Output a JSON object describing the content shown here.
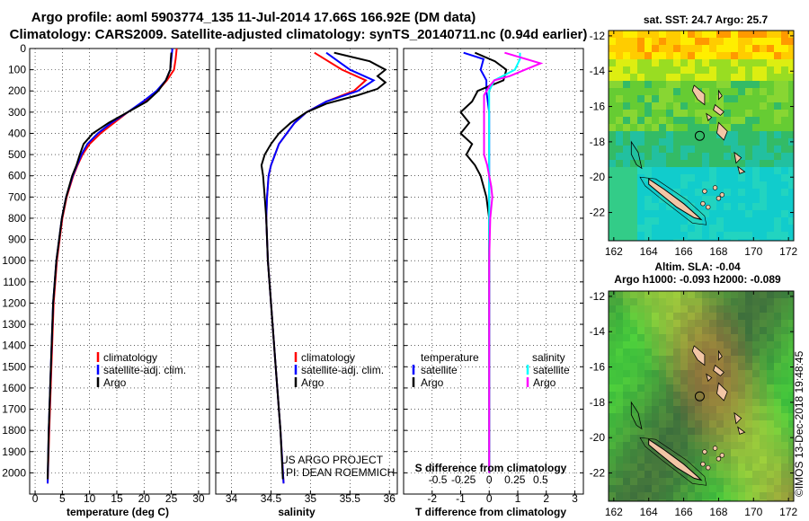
{
  "title_line1": "Argo profile: aoml 5903774_135 11-Jul-2014 17.66S 166.92E (DM data)",
  "title_line2": "Climatology: CARS2009. Satellite-adjusted climatology: synTS_20140711.nc (0.94d earlier)",
  "watermark": "©IMOS 13-Dec-2018 19:48:45",
  "project_line1": "US ARGO PROJECT",
  "project_line2": "PI: DEAN ROEMMICH",
  "colors": {
    "climatology": "#ff0000",
    "satellite": "#0000ff",
    "argo": "#000000",
    "sat_s": "#00ffff",
    "argo_s": "#ff00ff",
    "land": "#f2c6a6"
  },
  "chart_data": [
    {
      "type": "line",
      "xlabel": "temperature (deg C)",
      "ylabel": "",
      "xlim": [
        -1,
        32
      ],
      "ylim": [
        2100,
        0
      ],
      "xticks": [
        0,
        5,
        10,
        15,
        20,
        25,
        30
      ],
      "yticks": [
        0,
        100,
        200,
        300,
        400,
        500,
        600,
        700,
        800,
        900,
        1000,
        1100,
        1200,
        1300,
        1400,
        1500,
        1600,
        1700,
        1800,
        1900,
        2000
      ],
      "legend": [
        "climatology",
        "satellite-adj. clim.",
        "Argo"
      ],
      "series": [
        {
          "name": "climatology",
          "depth": [
            0,
            50,
            100,
            150,
            200,
            250,
            300,
            350,
            400,
            450,
            500,
            550,
            600,
            700,
            800,
            1000,
            1200,
            1500,
            1800,
            2050
          ],
          "values": [
            26.0,
            25.8,
            25.5,
            24.2,
            22.5,
            20.0,
            17.0,
            14.5,
            12.0,
            10.0,
            8.7,
            7.8,
            7.0,
            5.8,
            5.0,
            4.0,
            3.4,
            3.0,
            2.6,
            2.3
          ]
        },
        {
          "name": "satellite-adj. clim.",
          "depth": [
            0,
            50,
            100,
            150,
            200,
            250,
            300,
            350,
            400,
            450,
            500,
            550,
            600,
            700,
            800,
            1000,
            1200,
            1500,
            1800,
            2050
          ],
          "values": [
            25.2,
            25.0,
            24.8,
            24.0,
            22.3,
            19.8,
            17.0,
            14.0,
            11.5,
            9.6,
            8.5,
            7.7,
            6.9,
            5.7,
            4.9,
            3.9,
            3.3,
            2.9,
            2.5,
            2.3
          ]
        },
        {
          "name": "Argo",
          "depth": [
            20,
            50,
            100,
            150,
            200,
            250,
            300,
            350,
            400,
            450,
            500,
            550,
            600,
            700,
            800,
            1000,
            1200,
            1500,
            1800,
            2030
          ],
          "values": [
            25.0,
            24.9,
            24.8,
            24.0,
            22.6,
            20.5,
            17.0,
            13.5,
            10.6,
            8.9,
            8.2,
            7.6,
            6.8,
            5.7,
            4.9,
            3.9,
            3.3,
            2.9,
            2.5,
            2.3
          ]
        }
      ]
    },
    {
      "type": "line",
      "xlabel": "salinity",
      "ylabel": "",
      "xlim": [
        33.8,
        36.1
      ],
      "ylim": [
        2100,
        0
      ],
      "xticks": [
        34,
        34.5,
        35,
        35.5,
        36
      ],
      "legend": [
        "climatology",
        "satellite-adj. clim.",
        "Argo"
      ],
      "series": [
        {
          "name": "climatology",
          "depth": [
            20,
            100,
            150,
            200,
            250,
            300,
            350,
            400,
            450,
            500,
            550,
            600,
            700,
            800,
            1000,
            1200,
            1500,
            1800,
            2050
          ],
          "values": [
            35.05,
            35.4,
            35.7,
            35.55,
            35.2,
            34.95,
            34.8,
            34.7,
            34.6,
            34.55,
            34.5,
            34.47,
            34.45,
            34.44,
            34.46,
            34.5,
            34.56,
            34.62,
            34.66
          ]
        },
        {
          "name": "satellite-adj. clim.",
          "depth": [
            20,
            100,
            150,
            200,
            250,
            300,
            350,
            400,
            450,
            500,
            550,
            600,
            700,
            800,
            1000,
            1200,
            1500,
            1800,
            2050
          ],
          "values": [
            35.2,
            35.5,
            35.8,
            35.6,
            35.2,
            34.95,
            34.8,
            34.7,
            34.6,
            34.55,
            34.5,
            34.47,
            34.45,
            34.44,
            34.46,
            34.5,
            34.56,
            34.62,
            34.66
          ]
        },
        {
          "name": "Argo",
          "depth": [
            20,
            60,
            100,
            130,
            160,
            190,
            220,
            260,
            300,
            350,
            400,
            450,
            500,
            550,
            600,
            700,
            800,
            1000,
            1200,
            1500,
            1800,
            2030
          ],
          "values": [
            35.3,
            35.75,
            35.95,
            35.85,
            35.95,
            35.85,
            35.6,
            35.2,
            34.95,
            34.75,
            34.6,
            34.5,
            34.42,
            34.38,
            34.4,
            34.42,
            34.44,
            34.46,
            34.5,
            34.56,
            34.62,
            34.65
          ]
        }
      ]
    },
    {
      "type": "line",
      "xlabel": "T difference from climatology",
      "xlabel2": "S difference from climatology",
      "ylabel": "",
      "xlim": [
        -3,
        3.3
      ],
      "ylim": [
        2100,
        0
      ],
      "xticks": [
        -2,
        -1,
        0,
        1,
        2,
        3
      ],
      "xticks_s": [
        -0.5,
        -0.25,
        0,
        0.25,
        0.5
      ],
      "legend_left_title": "temperature",
      "legend_right_title": "salinity",
      "legend": [
        "satellite",
        "Argo"
      ],
      "series": [
        {
          "name": "T satellite",
          "depth": [
            20,
            50,
            100,
            150,
            200,
            300,
            400,
            500,
            600,
            800,
            1000,
            1500,
            2000
          ],
          "values": [
            -0.9,
            -0.2,
            -0.3,
            -0.1,
            -0.1,
            0,
            0,
            0,
            0,
            0,
            0,
            0,
            0
          ]
        },
        {
          "name": "T Argo",
          "depth": [
            20,
            60,
            100,
            150,
            200,
            250,
            300,
            350,
            400,
            450,
            500,
            550,
            600,
            700,
            800,
            1000,
            1500,
            2000
          ],
          "values": [
            -0.5,
            0.2,
            0.6,
            0.5,
            -0.4,
            -0.6,
            -1.0,
            -0.7,
            -1.0,
            -0.6,
            -0.8,
            -0.5,
            -0.3,
            -0.1,
            0,
            0,
            0,
            0
          ]
        },
        {
          "name": "S satellite",
          "depth": [
            20,
            50,
            100,
            150,
            200,
            300,
            400,
            500,
            600,
            800,
            1000,
            1500,
            2000
          ],
          "values": [
            0.3,
            0.3,
            0.25,
            0.05,
            0,
            0,
            0,
            0,
            0,
            0,
            0,
            0,
            0
          ]
        },
        {
          "name": "S Argo",
          "depth": [
            20,
            70,
            100,
            130,
            150,
            180,
            220,
            300,
            400,
            500,
            550,
            600,
            650,
            700,
            800,
            1000,
            1500,
            2000
          ],
          "values": [
            0.15,
            0.5,
            0.35,
            0.2,
            0.05,
            0,
            -0.05,
            -0.05,
            -0.05,
            -0.05,
            -0.02,
            0,
            0.02,
            0.03,
            0.01,
            0,
            0,
            0
          ]
        }
      ]
    },
    {
      "type": "heatmap",
      "title": "sat. SST: 24.7 Argo: 25.7",
      "xticks": [
        162,
        164,
        166,
        168,
        170,
        172
      ],
      "yticks": [
        -12,
        -14,
        -16,
        -18,
        -20,
        -22
      ],
      "xlim": [
        161.7,
        172.3
      ],
      "ylim": [
        -23.6,
        -11.7
      ],
      "argo_position": [
        166.92,
        -17.66
      ]
    },
    {
      "type": "heatmap",
      "title": "Altim. SLA: -0.04",
      "subtitle": "Argo h1000: -0.093 h2000: -0.089",
      "xticks": [
        162,
        164,
        166,
        168,
        170,
        172
      ],
      "yticks": [
        -12,
        -14,
        -16,
        -18,
        -20,
        -22
      ],
      "xlim": [
        161.7,
        172.3
      ],
      "ylim": [
        -23.6,
        -11.7
      ],
      "argo_position": [
        166.92,
        -17.66
      ]
    }
  ]
}
